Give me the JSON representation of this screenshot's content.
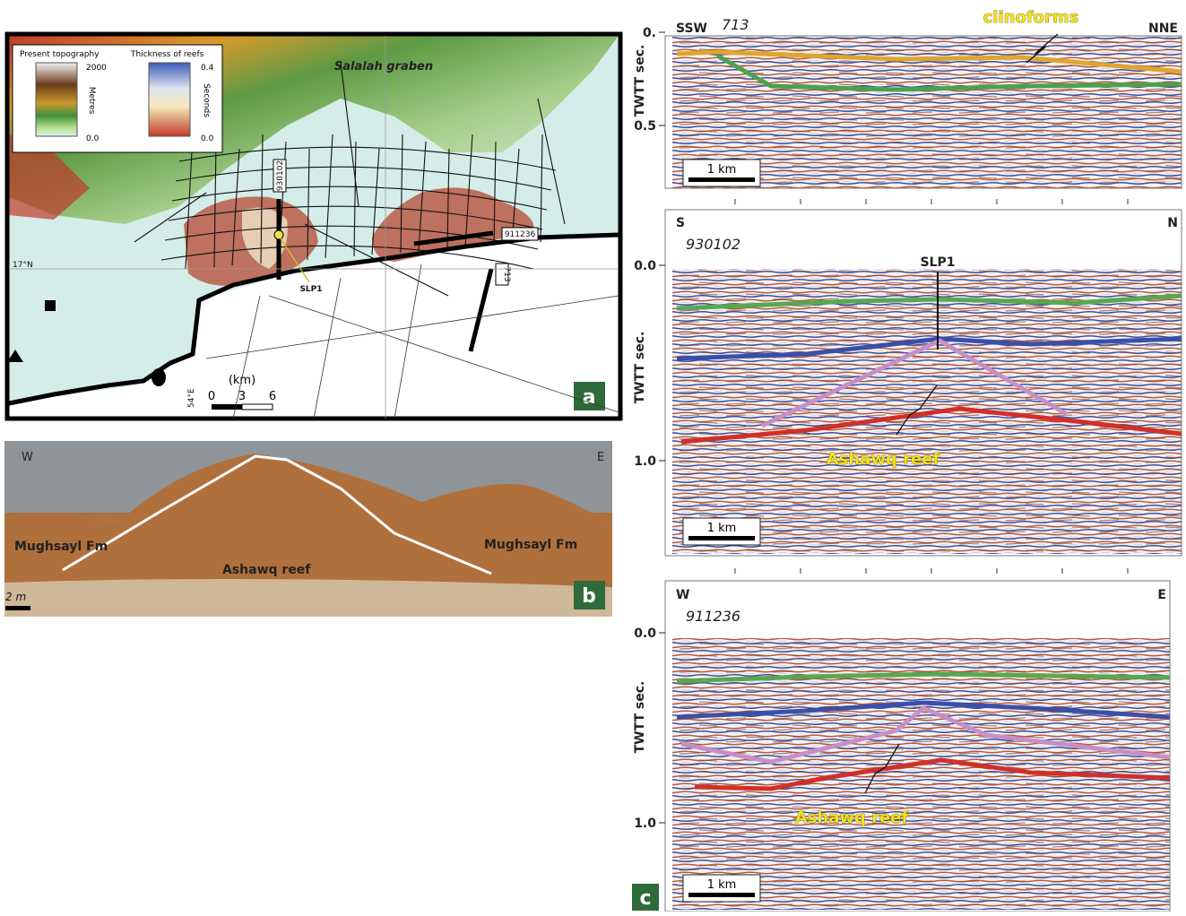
{
  "panel_a": {
    "label": "a",
    "legend_topography": {
      "title": "Present topography",
      "max": "2000",
      "min": "0.0",
      "unit": "Metres"
    },
    "legend_reefs": {
      "title": "Thickness of reefs",
      "max": "0.4",
      "min": "0.0",
      "unit": "Seconds"
    },
    "place": "Salalah graben",
    "line_930102": "930102",
    "line_911236": "911236",
    "line_713": "713",
    "well": "SLP1",
    "latitude": "17°N",
    "longitude": "54°E",
    "scale_unit": "(km)",
    "scale_ticks": [
      "0",
      "3",
      "6"
    ]
  },
  "panel_b": {
    "label": "b",
    "left": "W",
    "right": "E",
    "formation_left": "Mughsayl Fm",
    "reef": "Ashawq reef",
    "formation_right": "Mughsayl Fm",
    "scale": "2 m"
  },
  "panel_c": {
    "label": "c",
    "axis_label": "TWTT sec.",
    "sections": [
      {
        "left": "SSW",
        "line": "713",
        "right": "NNE",
        "annotation": "clinoforms",
        "ticks": [
          "0.",
          "0.5"
        ],
        "scale": "1 km"
      },
      {
        "left": "S",
        "line": "930102",
        "right": "N",
        "well": "SLP1",
        "annotation": "Ashawq reef",
        "ticks": [
          "0.0",
          "1.0"
        ],
        "scale": "1 km"
      },
      {
        "left": "W",
        "line": "911236",
        "right": "E",
        "annotation": "Ashawq reef",
        "ticks": [
          "0.0",
          "1.0"
        ],
        "scale": "1 km"
      }
    ]
  }
}
